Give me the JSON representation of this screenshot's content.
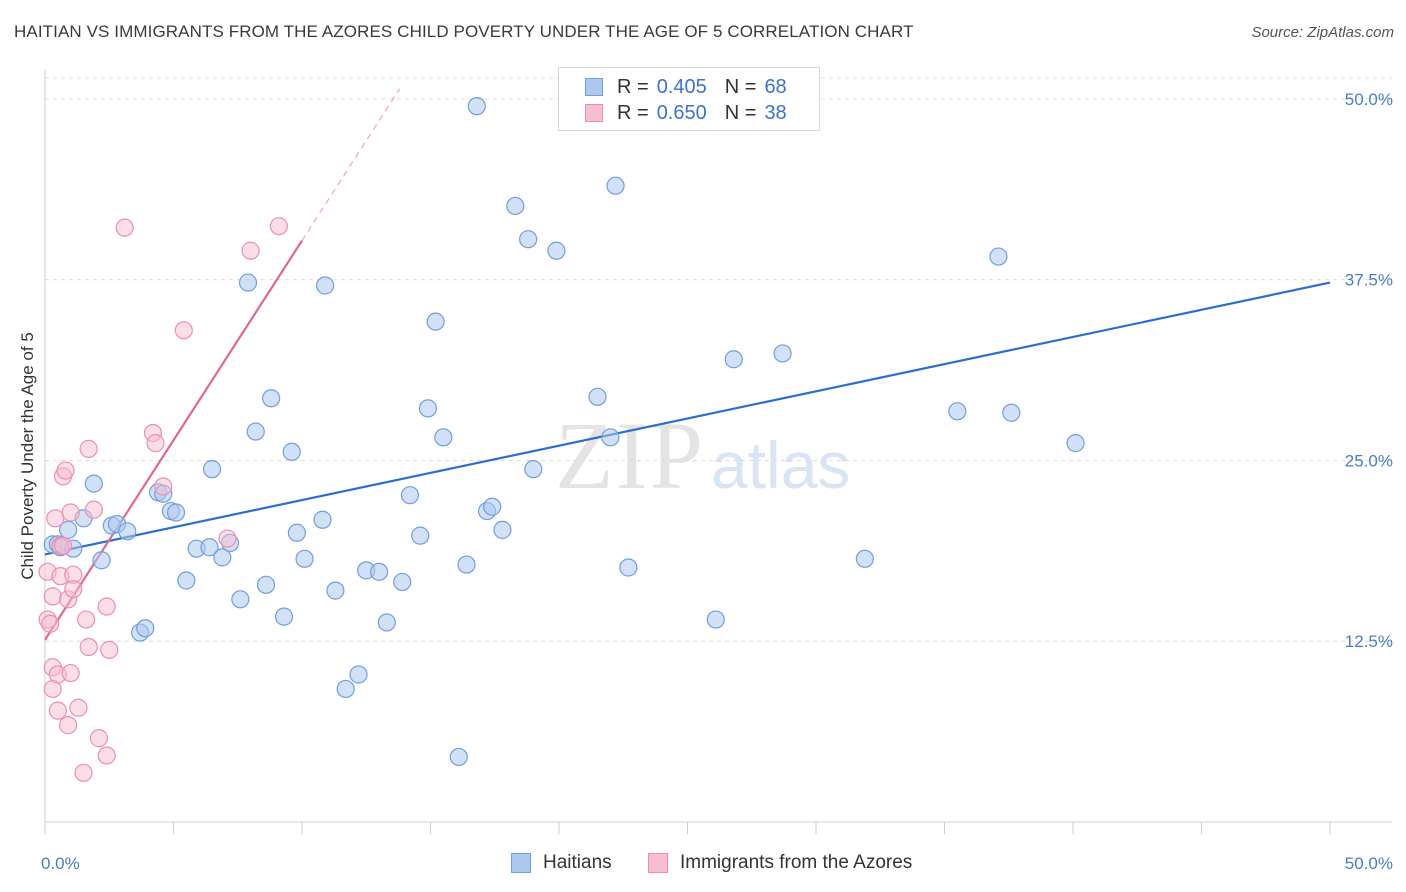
{
  "header": {
    "title": "HAITIAN VS IMMIGRANTS FROM THE AZORES CHILD POVERTY UNDER THE AGE OF 5 CORRELATION CHART",
    "source": "Source: ZipAtlas.com"
  },
  "watermark": {
    "zip": "ZIP",
    "atlas": "atlas"
  },
  "legend": {
    "rows": [
      {
        "r_label": "R = ",
        "r_value": "0.405",
        "n_label": "N = ",
        "n_value": "68"
      },
      {
        "r_label": "R = ",
        "r_value": "0.650",
        "n_label": "N = ",
        "n_value": "38"
      }
    ]
  },
  "bottom_legend": {
    "series1": "Haitians",
    "series2": "Immigrants from the Azores"
  },
  "colors": {
    "haitians_fill": "#adc9ef",
    "haitians_stroke": "#6f9fe0",
    "haitians_line": "#2c6fca",
    "azores_fill": "#f7bdd0",
    "azores_stroke": "#ee8fae",
    "azores_line": "#e2678f",
    "grid": "#dcdcdc",
    "tick_text": "#4a7cc7"
  },
  "chart_data": {
    "type": "scatter",
    "title": "HAITIAN VS IMMIGRANTS FROM THE AZORES CHILD POVERTY UNDER THE AGE OF 5 CORRELATION CHART",
    "xlabel": "",
    "ylabel": "Child Poverty Under the Age of 5",
    "xlim": [
      0,
      50
    ],
    "ylim": [
      0,
      52
    ],
    "x_tick_labels": [
      "0.0%",
      "50.0%"
    ],
    "y_ticks": [
      12.5,
      25.0,
      37.5,
      50.0
    ],
    "y_tick_labels": [
      "12.5%",
      "25.0%",
      "37.5%",
      "50.0%"
    ],
    "grid": true,
    "legend_position": "top-center",
    "series": [
      {
        "name": "Haitians",
        "R": 0.405,
        "N": 68,
        "trend": {
          "x": [
            0,
            50
          ],
          "y": [
            18.5,
            37.3
          ]
        },
        "points": [
          [
            0.3,
            19.2
          ],
          [
            0.5,
            19.2
          ],
          [
            0.6,
            19.0
          ],
          [
            0.9,
            20.2
          ],
          [
            1.1,
            18.9
          ],
          [
            1.5,
            21.0
          ],
          [
            1.9,
            23.4
          ],
          [
            2.2,
            18.1
          ],
          [
            2.6,
            20.5
          ],
          [
            2.8,
            20.6
          ],
          [
            3.2,
            20.1
          ],
          [
            3.7,
            13.1
          ],
          [
            3.9,
            13.4
          ],
          [
            4.4,
            22.8
          ],
          [
            4.6,
            22.7
          ],
          [
            4.9,
            21.5
          ],
          [
            5.1,
            21.4
          ],
          [
            5.5,
            16.7
          ],
          [
            5.9,
            18.9
          ],
          [
            6.4,
            19.0
          ],
          [
            6.5,
            24.4
          ],
          [
            6.9,
            18.3
          ],
          [
            7.2,
            19.3
          ],
          [
            7.6,
            15.4
          ],
          [
            7.9,
            37.3
          ],
          [
            8.2,
            27.0
          ],
          [
            8.6,
            16.4
          ],
          [
            8.8,
            29.3
          ],
          [
            9.3,
            14.2
          ],
          [
            9.6,
            25.6
          ],
          [
            9.8,
            20.0
          ],
          [
            10.1,
            18.2
          ],
          [
            10.8,
            20.9
          ],
          [
            10.9,
            37.1
          ],
          [
            11.3,
            16.0
          ],
          [
            11.7,
            9.2
          ],
          [
            12.2,
            10.2
          ],
          [
            12.5,
            17.4
          ],
          [
            13.0,
            17.3
          ],
          [
            13.3,
            13.8
          ],
          [
            13.9,
            16.6
          ],
          [
            14.2,
            22.6
          ],
          [
            14.6,
            19.8
          ],
          [
            14.9,
            28.6
          ],
          [
            15.2,
            34.6
          ],
          [
            15.5,
            26.6
          ],
          [
            16.1,
            4.5
          ],
          [
            16.4,
            17.8
          ],
          [
            16.8,
            49.5
          ],
          [
            17.2,
            21.5
          ],
          [
            17.4,
            21.8
          ],
          [
            17.8,
            20.2
          ],
          [
            18.3,
            42.6
          ],
          [
            18.8,
            40.3
          ],
          [
            19.0,
            24.4
          ],
          [
            19.9,
            39.5
          ],
          [
            21.5,
            29.4
          ],
          [
            22.0,
            26.6
          ],
          [
            22.2,
            44.0
          ],
          [
            22.7,
            17.6
          ],
          [
            26.1,
            14.0
          ],
          [
            26.8,
            32.0
          ],
          [
            28.7,
            32.4
          ],
          [
            31.9,
            18.2
          ],
          [
            35.5,
            28.4
          ],
          [
            37.6,
            28.3
          ],
          [
            37.1,
            39.1
          ],
          [
            40.1,
            26.2
          ]
        ]
      },
      {
        "name": "Immigrants from the Azores",
        "R": 0.65,
        "N": 38,
        "trend": {
          "x": [
            0,
            10
          ],
          "y": [
            12.6,
            40.2
          ]
        },
        "trend_extension": {
          "x": [
            10,
            13.8
          ],
          "y": [
            40.2,
            50.7
          ]
        },
        "points": [
          [
            0.1,
            17.3
          ],
          [
            0.1,
            14.0
          ],
          [
            0.2,
            13.7
          ],
          [
            0.3,
            10.7
          ],
          [
            0.3,
            9.2
          ],
          [
            0.3,
            15.6
          ],
          [
            0.4,
            21.0
          ],
          [
            0.5,
            7.7
          ],
          [
            0.5,
            10.2
          ],
          [
            0.6,
            19.1
          ],
          [
            0.6,
            17.0
          ],
          [
            0.7,
            23.9
          ],
          [
            0.7,
            19.1
          ],
          [
            0.8,
            24.3
          ],
          [
            0.9,
            6.7
          ],
          [
            0.9,
            15.4
          ],
          [
            1.0,
            10.3
          ],
          [
            1.0,
            21.4
          ],
          [
            1.1,
            17.1
          ],
          [
            1.1,
            16.1
          ],
          [
            1.3,
            7.9
          ],
          [
            1.6,
            14.0
          ],
          [
            1.7,
            12.1
          ],
          [
            1.7,
            25.8
          ],
          [
            1.9,
            21.6
          ],
          [
            2.1,
            5.8
          ],
          [
            2.4,
            14.9
          ],
          [
            2.4,
            4.6
          ],
          [
            2.5,
            11.9
          ],
          [
            3.1,
            41.1
          ],
          [
            4.2,
            26.9
          ],
          [
            4.3,
            26.2
          ],
          [
            4.6,
            23.2
          ],
          [
            5.4,
            34.0
          ],
          [
            7.1,
            19.6
          ],
          [
            8.0,
            39.5
          ],
          [
            9.1,
            41.2
          ],
          [
            1.5,
            3.4
          ]
        ]
      }
    ]
  }
}
